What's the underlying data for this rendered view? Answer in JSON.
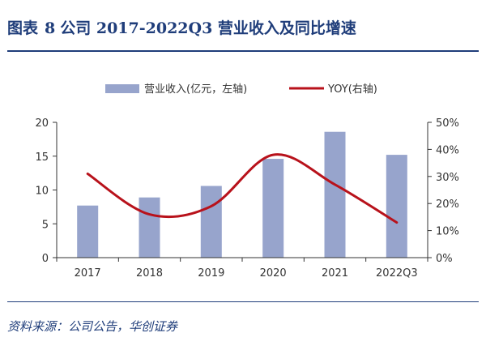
{
  "header": {
    "figure_label": "图表",
    "figure_number": "8",
    "title": "公司 2017-2022Q3 营业收入及同比增速"
  },
  "footer": {
    "source": "资料来源：公司公告，华创证券"
  },
  "chart_data": {
    "type": "bar",
    "categories": [
      "2017",
      "2018",
      "2019",
      "2020",
      "2021",
      "2022Q3"
    ],
    "series": [
      {
        "name": "营业收入(亿元，左轴)",
        "type": "bar",
        "axis": "left",
        "color": "#97a4cc",
        "values": [
          7.7,
          8.9,
          10.6,
          14.6,
          18.6,
          15.2
        ]
      },
      {
        "name": "YOY(右轴)",
        "type": "line",
        "axis": "right",
        "color": "#b8121b",
        "values": [
          31,
          16,
          19,
          38,
          27,
          13
        ]
      }
    ],
    "y_left": {
      "ylim": [
        0,
        20
      ],
      "ticks": [
        "0",
        "5",
        "10",
        "15",
        "20"
      ]
    },
    "y_right": {
      "ylim": [
        0,
        50
      ],
      "ticks": [
        "0%",
        "10%",
        "20%",
        "30%",
        "40%",
        "50%"
      ]
    },
    "legend": "top-center",
    "grid": false
  }
}
